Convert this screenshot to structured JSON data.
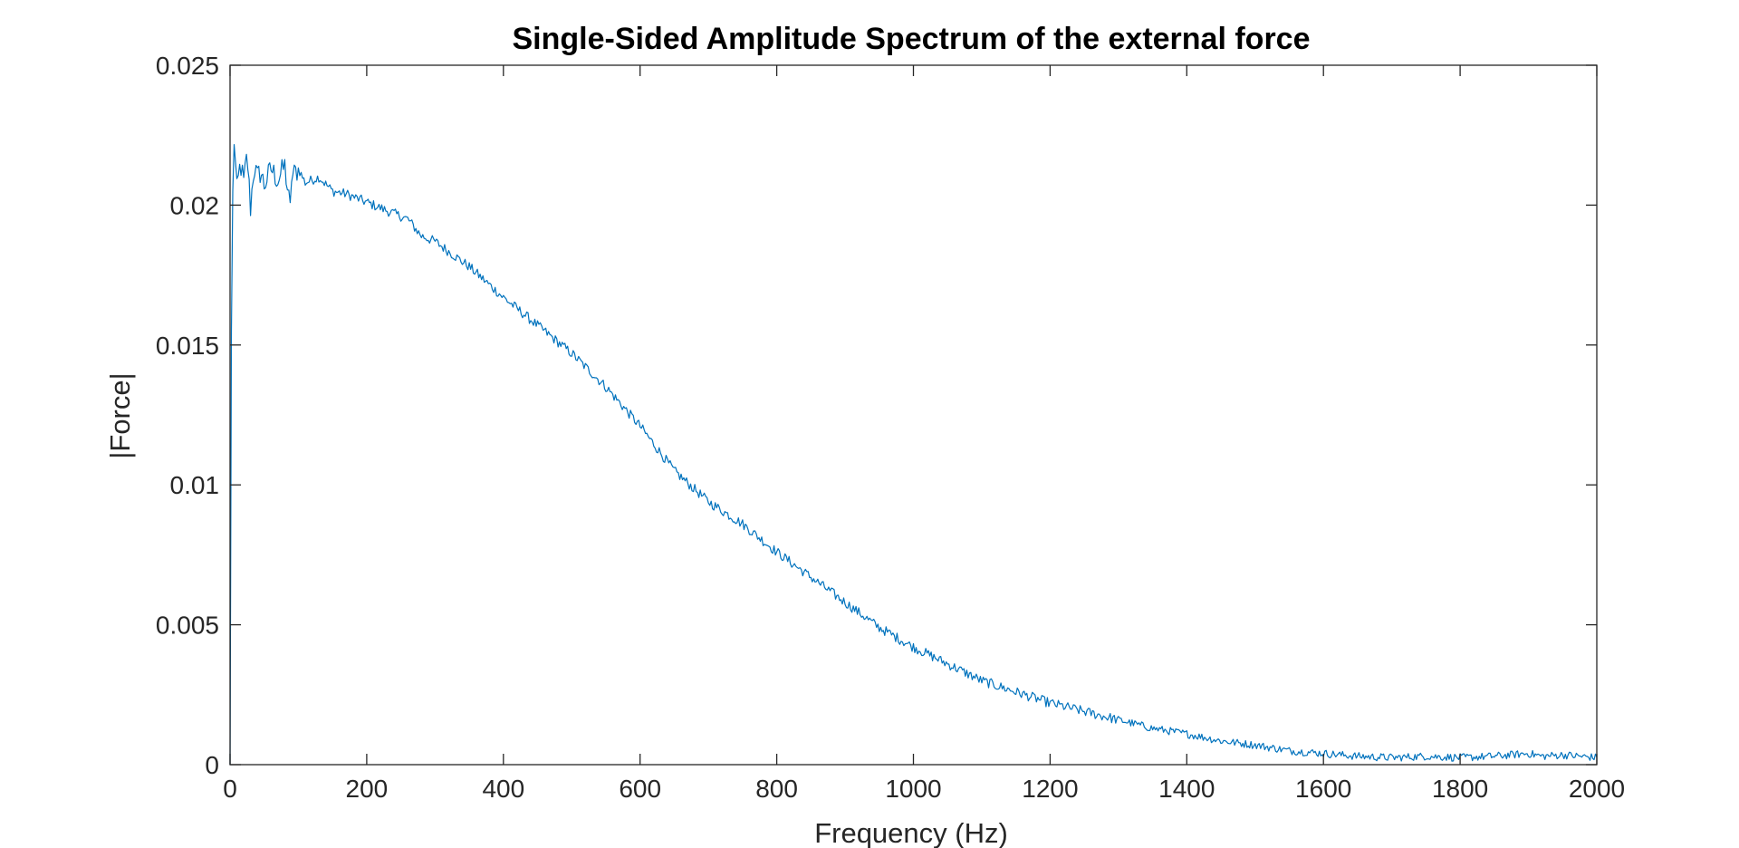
{
  "chart_data": {
    "type": "line",
    "title": "Single-Sided Amplitude Spectrum of the external force",
    "xlabel": "Frequency (Hz)",
    "ylabel": "|Force|",
    "xlim": [
      0,
      2000
    ],
    "ylim": [
      0,
      0.025
    ],
    "x_ticks": [
      0,
      200,
      400,
      600,
      800,
      1000,
      1200,
      1400,
      1600,
      1800,
      2000
    ],
    "x_tick_labels": [
      "0",
      "200",
      "400",
      "600",
      "800",
      "1000",
      "1200",
      "1400",
      "1600",
      "1800",
      "2000"
    ],
    "y_ticks": [
      0,
      0.005,
      0.01,
      0.015,
      0.02,
      0.025
    ],
    "y_tick_labels": [
      "0",
      "0.005",
      "0.01",
      "0.015",
      "0.02",
      "0.025"
    ],
    "grid": false,
    "box": true,
    "series": [
      {
        "color": "#0072BD",
        "x": [
          0,
          2,
          5,
          10,
          15,
          20,
          25,
          30,
          35,
          40,
          45,
          50,
          60,
          70,
          80,
          88,
          90,
          100,
          110,
          130,
          150,
          170,
          200,
          230,
          260,
          280,
          300,
          350,
          400,
          450,
          500,
          550,
          600,
          650,
          700,
          750,
          800,
          850,
          900,
          950,
          1000,
          1050,
          1100,
          1150,
          1200,
          1250,
          1300,
          1350,
          1400,
          1450,
          1500,
          1550,
          1600,
          1650,
          1700,
          1750,
          1800,
          1850,
          1900,
          1920,
          1950,
          2000
        ],
        "y": [
          0.0,
          0.0155,
          0.0228,
          0.0205,
          0.0215,
          0.0208,
          0.0218,
          0.0199,
          0.0214,
          0.021,
          0.0212,
          0.0207,
          0.0213,
          0.0209,
          0.0214,
          0.0198,
          0.021,
          0.0213,
          0.0208,
          0.021,
          0.0205,
          0.0204,
          0.0201,
          0.0198,
          0.0195,
          0.0189,
          0.0187,
          0.0178,
          0.0167,
          0.0157,
          0.0147,
          0.0135,
          0.0121,
          0.0105,
          0.0094,
          0.0086,
          0.0076,
          0.0067,
          0.0058,
          0.0049,
          0.0042,
          0.0036,
          0.003,
          0.0026,
          0.0022,
          0.0019,
          0.0016,
          0.0013,
          0.0011,
          0.00085,
          0.0007,
          0.0005,
          0.0004,
          0.0003,
          0.00025,
          0.0003,
          0.00025,
          0.0003,
          0.0004,
          0.0003,
          0.00035,
          0.00025
        ]
      }
    ]
  }
}
